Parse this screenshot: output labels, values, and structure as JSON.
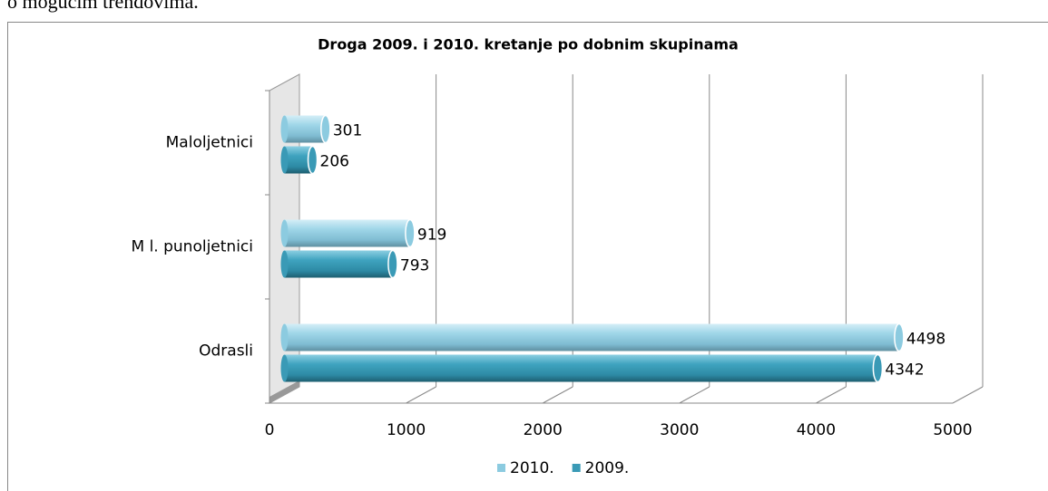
{
  "document_text": "o mogućim trendovima.",
  "chart_data": {
    "type": "bar",
    "orientation": "horizontal",
    "title": "Droga 2009. i 2010. kretanje po dobnim skupinama",
    "categories": [
      "Maloljetnici",
      "M l.  punoljetnici",
      "Odrasli"
    ],
    "series": [
      {
        "name": "2010.",
        "color": "#8ccbe0",
        "values": [
          301,
          919,
          4498
        ]
      },
      {
        "name": "2009.",
        "color": "#3a9ab6",
        "values": [
          206,
          793,
          4342
        ]
      }
    ],
    "xlim": [
      0,
      5000
    ],
    "xticks": [
      0,
      1000,
      2000,
      3000,
      4000,
      5000
    ],
    "grid": true,
    "legend": "bottom"
  }
}
